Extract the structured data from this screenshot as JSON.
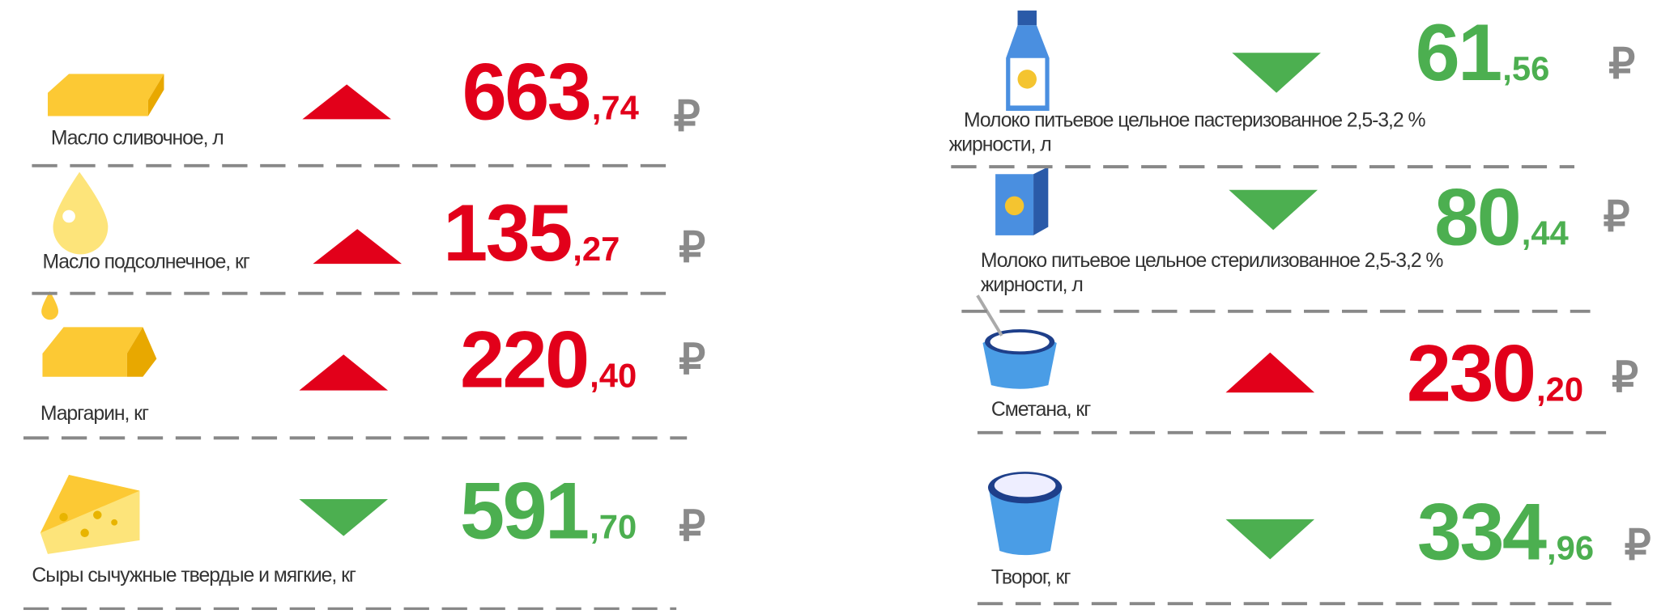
{
  "currency": "₽",
  "colors": {
    "up": "#e2001a",
    "down": "#4caf50"
  },
  "items": [
    {
      "label": [
        "Масло сливочное, л"
      ],
      "integer": "663",
      "fraction": ",74",
      "trend": "up"
    },
    {
      "label": [
        "Масло подсолнечное, кг"
      ],
      "integer": "135",
      "fraction": ",27",
      "trend": "up"
    },
    {
      "label": [
        "Маргарин, кг"
      ],
      "integer": "220",
      "fraction": ",40",
      "trend": "up"
    },
    {
      "label": [
        "Сыры сычужные твердые и мягкие, кг"
      ],
      "integer": "591",
      "fraction": ",70",
      "trend": "down"
    },
    {
      "label": [
        "Молоко питьевое цельное пастеризованное 2,5-3,2 %",
        "жирности, л"
      ],
      "integer": "61",
      "fraction": ",56",
      "trend": "down"
    },
    {
      "label": [
        "Молоко питьевое цельное стерилизованное 2,5-3,2 %",
        "жирности, л"
      ],
      "integer": "80",
      "fraction": ",44",
      "trend": "down"
    },
    {
      "label": [
        "Сметана, кг"
      ],
      "integer": "230",
      "fraction": ",20",
      "trend": "up"
    },
    {
      "label": [
        "Творог, кг"
      ],
      "integer": "334",
      "fraction": ",96",
      "trend": "down"
    }
  ]
}
